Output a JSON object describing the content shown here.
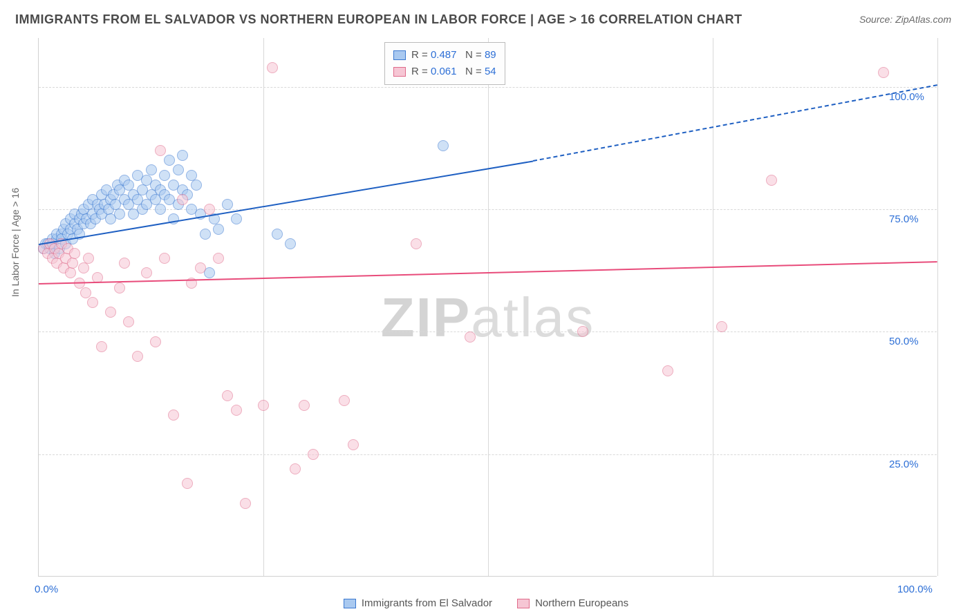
{
  "title": "IMMIGRANTS FROM EL SALVADOR VS NORTHERN EUROPEAN IN LABOR FORCE | AGE > 16 CORRELATION CHART",
  "source": "Source: ZipAtlas.com",
  "watermark_a": "ZIP",
  "watermark_b": "atlas",
  "chart": {
    "type": "scatter",
    "background_color": "#ffffff",
    "grid_color": "#d8d8d8",
    "border_color": "#d0d0d0",
    "ylabel": "In Labor Force | Age > 16",
    "ylabel_color": "#666666",
    "xlim": [
      0,
      100
    ],
    "ylim": [
      0,
      110
    ],
    "xtick_min": {
      "v": 0.0,
      "label": "0.0%",
      "color": "#2d6fd6"
    },
    "xtick_max": {
      "v": 100.0,
      "label": "100.0%",
      "color": "#2d6fd6"
    },
    "yticks": [
      {
        "v": 25.0,
        "label": "25.0%",
        "color": "#2d6fd6"
      },
      {
        "v": 50.0,
        "label": "50.0%",
        "color": "#2d6fd6"
      },
      {
        "v": 75.0,
        "label": "75.0%",
        "color": "#2d6fd6"
      },
      {
        "v": 100.0,
        "label": "100.0%",
        "color": "#2d6fd6"
      }
    ],
    "x_gridlines": [
      25,
      50,
      75,
      100
    ],
    "y_gridlines": [
      25,
      50,
      75,
      100
    ],
    "point_radius": 8,
    "point_opacity": 0.55,
    "point_border_width": 1.3,
    "series": [
      {
        "name": "Immigrants from El Salvador",
        "color_fill": "#a9c9f0",
        "color_border": "#3a78d0",
        "trend_color": "#1e5fc2",
        "trend_width": 2.5,
        "trend": {
          "x1": 0,
          "y1": 68,
          "x2": 55,
          "y2": 85,
          "extend_x": 100,
          "extend_y": 100.5,
          "dashed_after": 55
        },
        "R": "0.487",
        "N": "89",
        "points": [
          [
            0.5,
            67
          ],
          [
            0.8,
            68
          ],
          [
            1.0,
            68
          ],
          [
            1.2,
            67
          ],
          [
            1.5,
            69
          ],
          [
            1.5,
            68
          ],
          [
            1.8,
            66
          ],
          [
            2.0,
            69
          ],
          [
            2.0,
            70
          ],
          [
            2.3,
            67
          ],
          [
            2.5,
            70
          ],
          [
            2.5,
            69
          ],
          [
            2.8,
            71
          ],
          [
            3.0,
            68
          ],
          [
            3.0,
            72
          ],
          [
            3.2,
            70
          ],
          [
            3.5,
            71
          ],
          [
            3.5,
            73
          ],
          [
            3.8,
            69
          ],
          [
            4.0,
            72
          ],
          [
            4.0,
            74
          ],
          [
            4.3,
            71
          ],
          [
            4.5,
            73
          ],
          [
            4.5,
            70
          ],
          [
            4.8,
            74
          ],
          [
            5.0,
            72
          ],
          [
            5.0,
            75
          ],
          [
            5.3,
            73
          ],
          [
            5.5,
            76
          ],
          [
            5.8,
            72
          ],
          [
            6.0,
            74
          ],
          [
            6.0,
            77
          ],
          [
            6.3,
            73
          ],
          [
            6.5,
            76
          ],
          [
            6.8,
            75
          ],
          [
            7.0,
            78
          ],
          [
            7.0,
            74
          ],
          [
            7.3,
            76
          ],
          [
            7.5,
            79
          ],
          [
            7.8,
            75
          ],
          [
            8.0,
            77
          ],
          [
            8.0,
            73
          ],
          [
            8.3,
            78
          ],
          [
            8.5,
            76
          ],
          [
            8.8,
            80
          ],
          [
            9.0,
            74
          ],
          [
            9.0,
            79
          ],
          [
            9.5,
            77
          ],
          [
            9.5,
            81
          ],
          [
            10.0,
            76
          ],
          [
            10.0,
            80
          ],
          [
            10.5,
            78
          ],
          [
            10.5,
            74
          ],
          [
            11.0,
            82
          ],
          [
            11.0,
            77
          ],
          [
            11.5,
            79
          ],
          [
            11.5,
            75
          ],
          [
            12.0,
            81
          ],
          [
            12.0,
            76
          ],
          [
            12.5,
            78
          ],
          [
            12.5,
            83
          ],
          [
            13.0,
            77
          ],
          [
            13.0,
            80
          ],
          [
            13.5,
            79
          ],
          [
            13.5,
            75
          ],
          [
            14.0,
            82
          ],
          [
            14.0,
            78
          ],
          [
            14.5,
            85
          ],
          [
            14.5,
            77
          ],
          [
            15.0,
            80
          ],
          [
            15.0,
            73
          ],
          [
            15.5,
            83
          ],
          [
            15.5,
            76
          ],
          [
            16.0,
            79
          ],
          [
            16.0,
            86
          ],
          [
            16.5,
            78
          ],
          [
            17.0,
            82
          ],
          [
            17.0,
            75
          ],
          [
            17.5,
            80
          ],
          [
            18.0,
            74
          ],
          [
            18.5,
            70
          ],
          [
            19.0,
            62
          ],
          [
            19.5,
            73
          ],
          [
            20.0,
            71
          ],
          [
            21.0,
            76
          ],
          [
            22.0,
            73
          ],
          [
            26.5,
            70
          ],
          [
            28.0,
            68
          ],
          [
            45.0,
            88
          ]
        ]
      },
      {
        "name": "Northern Europeans",
        "color_fill": "#f6c6d4",
        "color_border": "#e06b8b",
        "trend_color": "#e84b7a",
        "trend_width": 2.2,
        "trend": {
          "x1": 0,
          "y1": 60,
          "x2": 100,
          "y2": 64.5,
          "extend_x": 100,
          "extend_y": 64.5,
          "dashed_after": 200
        },
        "R": "0.061",
        "N": "54",
        "points": [
          [
            0.5,
            67
          ],
          [
            1.0,
            66
          ],
          [
            1.2,
            68
          ],
          [
            1.5,
            65
          ],
          [
            1.8,
            67
          ],
          [
            2.0,
            64
          ],
          [
            2.2,
            66
          ],
          [
            2.5,
            68
          ],
          [
            2.8,
            63
          ],
          [
            3.0,
            65
          ],
          [
            3.2,
            67
          ],
          [
            3.5,
            62
          ],
          [
            3.8,
            64
          ],
          [
            4.0,
            66
          ],
          [
            4.5,
            60
          ],
          [
            5.0,
            63
          ],
          [
            5.2,
            58
          ],
          [
            5.5,
            65
          ],
          [
            6.0,
            56
          ],
          [
            6.5,
            61
          ],
          [
            7.0,
            47
          ],
          [
            8.0,
            54
          ],
          [
            9.0,
            59
          ],
          [
            9.5,
            64
          ],
          [
            10.0,
            52
          ],
          [
            11.0,
            45
          ],
          [
            12.0,
            62
          ],
          [
            13.0,
            48
          ],
          [
            13.5,
            87
          ],
          [
            14.0,
            65
          ],
          [
            15.0,
            33
          ],
          [
            16.0,
            77
          ],
          [
            16.5,
            19
          ],
          [
            17.0,
            60
          ],
          [
            18.0,
            63
          ],
          [
            19.0,
            75
          ],
          [
            20.0,
            65
          ],
          [
            21.0,
            37
          ],
          [
            22.0,
            34
          ],
          [
            23.0,
            15
          ],
          [
            25.0,
            35
          ],
          [
            26.0,
            104
          ],
          [
            28.5,
            22
          ],
          [
            29.5,
            35
          ],
          [
            30.5,
            25
          ],
          [
            34.0,
            36
          ],
          [
            35.0,
            27
          ],
          [
            42.0,
            68
          ],
          [
            48.0,
            49
          ],
          [
            60.5,
            50
          ],
          [
            70.0,
            42
          ],
          [
            76.0,
            51
          ],
          [
            81.5,
            81
          ],
          [
            94.0,
            103
          ]
        ]
      }
    ],
    "legend_top": {
      "r_label": "R =",
      "n_label": "N =",
      "value_color": "#2d6fd6",
      "label_color": "#555555"
    },
    "legend_bottom_color": "#555555"
  }
}
